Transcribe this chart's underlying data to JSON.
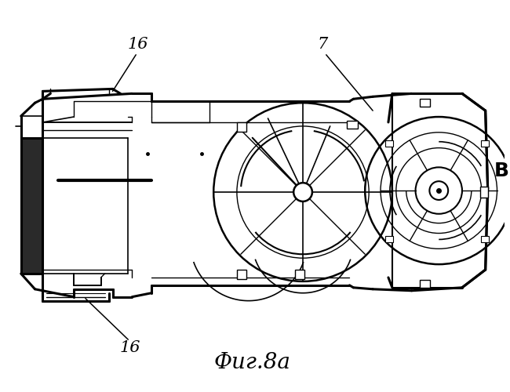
{
  "title": "Фиг.8а",
  "label_16_top": "16",
  "label_16_bottom": "16",
  "label_7": "7",
  "label_B": "B",
  "bg_color": "#ffffff",
  "line_color": "#000000",
  "fig_width": 6.5,
  "fig_height": 5.0,
  "dpi": 100
}
